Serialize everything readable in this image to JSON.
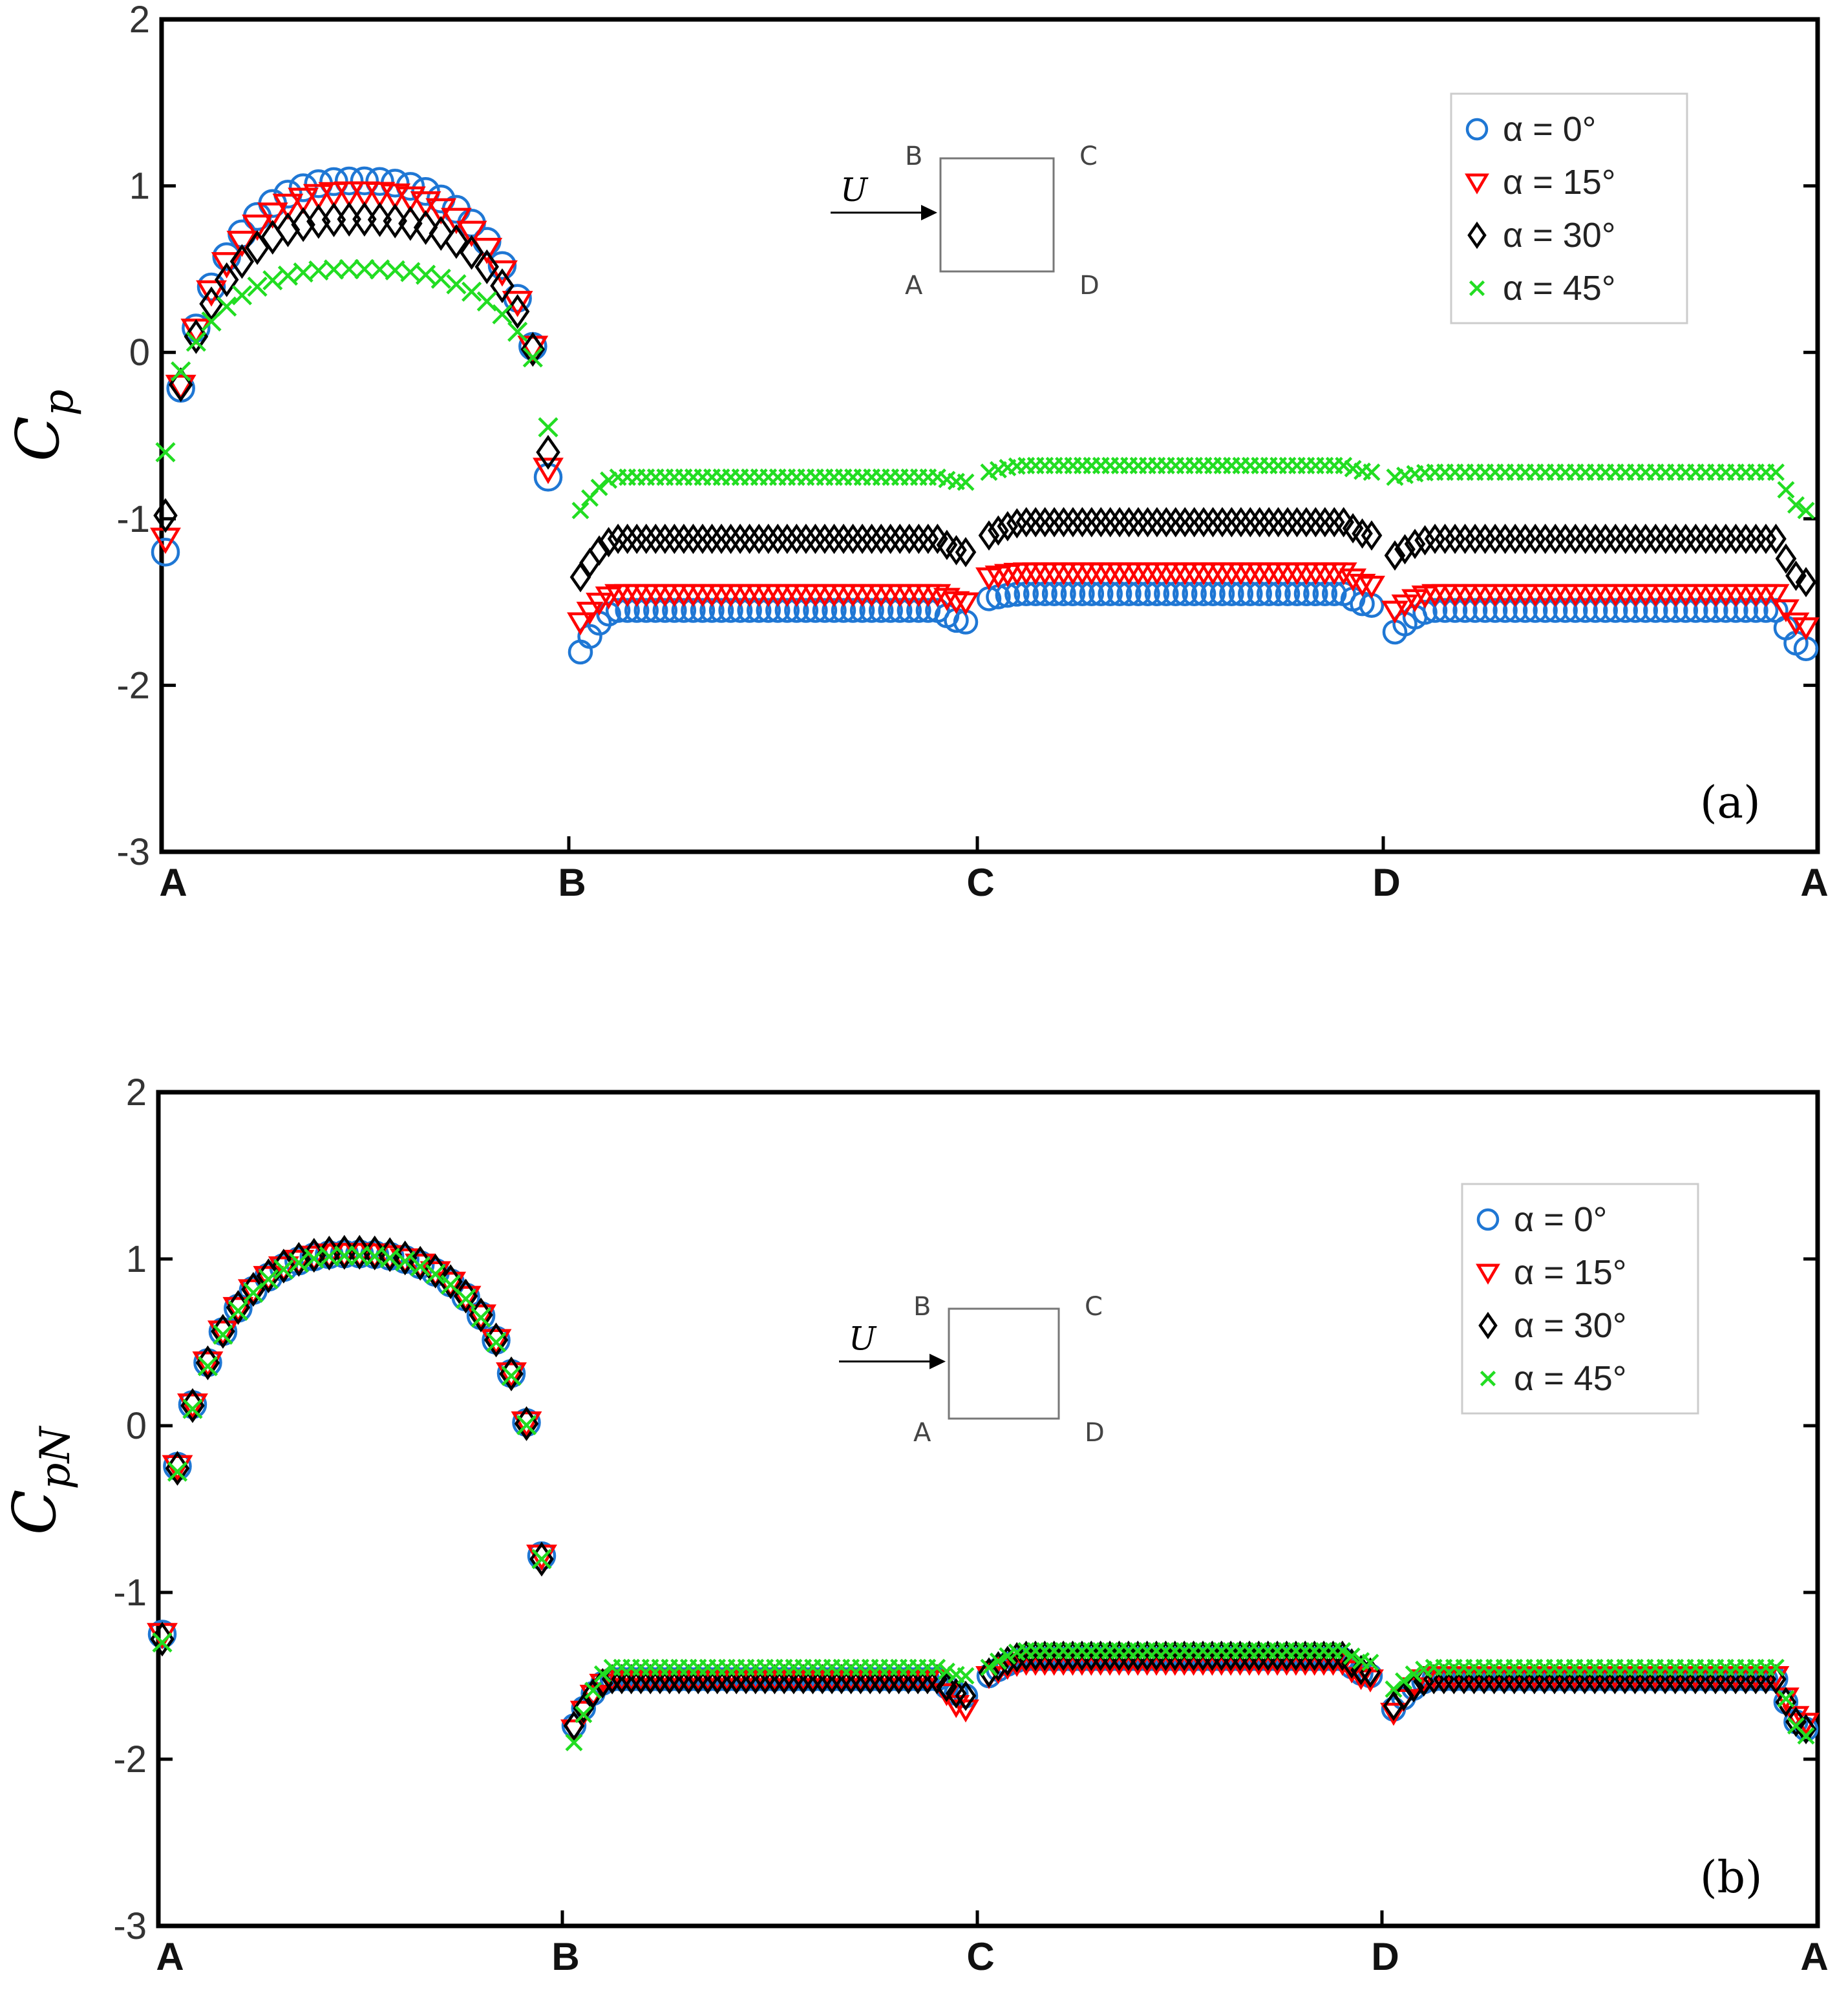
{
  "colors": {
    "alpha0": "#1f77d4",
    "alpha15": "#ff0000",
    "alpha30": "#000000",
    "alpha45": "#22dd22"
  },
  "chart_data": [
    {
      "type": "scatter",
      "panel_tag": "(a)",
      "ylabel_main": "C",
      "ylabel_sub": "p",
      "ylim": [
        -3,
        2
      ],
      "yticks": [
        "2",
        "1",
        "0",
        "-1",
        "-2",
        "-3"
      ],
      "xticks": [
        "A",
        "B",
        "C",
        "D",
        "A"
      ],
      "legend_position": "top-right",
      "inset": {
        "flow_label": "U",
        "corners": [
          "B",
          "C",
          "A",
          "D"
        ]
      },
      "series": [
        {
          "name": "α = 0°",
          "marker": "circle",
          "color": "#1f77d4",
          "faces": [
            {
              "ends": [
                -1.2,
                -0.75
              ],
              "peak": 1.03,
              "shape": "arch"
            },
            {
              "start": -1.8,
              "level": -1.55,
              "end": -1.62,
              "shape": "flat"
            },
            {
              "start": -1.48,
              "level": -1.45,
              "end": -1.52,
              "shape": "flat"
            },
            {
              "start": -1.68,
              "level": -1.55,
              "end": -1.78,
              "shape": "flat"
            }
          ]
        },
        {
          "name": "α = 15°",
          "marker": "triangle-down",
          "color": "#ff0000",
          "faces": [
            {
              "ends": [
                -1.12,
                -0.7
              ],
              "peak": 0.96,
              "shape": "arch"
            },
            {
              "start": -1.62,
              "level": -1.45,
              "end": -1.5,
              "shape": "flat"
            },
            {
              "start": -1.35,
              "level": -1.32,
              "end": -1.4,
              "shape": "flat"
            },
            {
              "start": -1.55,
              "level": -1.45,
              "end": -1.65,
              "shape": "flat"
            }
          ]
        },
        {
          "name": "α = 30°",
          "marker": "diamond",
          "color": "#000000",
          "faces": [
            {
              "ends": [
                -0.98,
                -0.6
              ],
              "peak": 0.8,
              "shape": "arch"
            },
            {
              "start": -1.35,
              "level": -1.12,
              "end": -1.2,
              "shape": "flat"
            },
            {
              "start": -1.1,
              "level": -1.02,
              "end": -1.1,
              "shape": "flat"
            },
            {
              "start": -1.22,
              "level": -1.12,
              "end": -1.38,
              "shape": "flat"
            }
          ]
        },
        {
          "name": "α = 45°",
          "marker": "x",
          "color": "#22dd22",
          "faces": [
            {
              "ends": [
                -0.6,
                -0.45
              ],
              "peak": 0.5,
              "shape": "arch"
            },
            {
              "start": -0.95,
              "level": -0.75,
              "end": -0.78,
              "shape": "flat"
            },
            {
              "start": -0.72,
              "level": -0.68,
              "end": -0.72,
              "shape": "flat"
            },
            {
              "start": -0.75,
              "level": -0.72,
              "end": -0.95,
              "shape": "flat"
            }
          ]
        }
      ]
    },
    {
      "type": "scatter",
      "panel_tag": "(b)",
      "ylabel_main": "C",
      "ylabel_sub": "pN",
      "ylim": [
        -3,
        2
      ],
      "yticks": [
        "2",
        "1",
        "0",
        "-1",
        "-2",
        "-3"
      ],
      "xticks": [
        "A",
        "B",
        "C",
        "D",
        "A"
      ],
      "legend_position": "top-right",
      "inset": {
        "flow_label": "U",
        "corners": [
          "B",
          "C",
          "A",
          "D"
        ]
      },
      "series": [
        {
          "name": "α = 0°",
          "marker": "circle",
          "color": "#1f77d4",
          "faces": [
            {
              "ends": [
                -1.25,
                -0.78
              ],
              "peak": 1.03,
              "shape": "arch"
            },
            {
              "start": -1.8,
              "level": -1.52,
              "end": -1.62,
              "shape": "flat"
            },
            {
              "start": -1.5,
              "level": -1.4,
              "end": -1.5,
              "shape": "flat"
            },
            {
              "start": -1.7,
              "level": -1.52,
              "end": -1.82,
              "shape": "flat"
            }
          ]
        },
        {
          "name": "α = 15°",
          "marker": "triangle-down",
          "color": "#ff0000",
          "faces": [
            {
              "ends": [
                -1.25,
                -0.78
              ],
              "peak": 1.03,
              "shape": "arch"
            },
            {
              "start": -1.82,
              "level": -1.52,
              "end": -1.7,
              "shape": "flat"
            },
            {
              "start": -1.5,
              "level": -1.42,
              "end": -1.52,
              "shape": "flat"
            },
            {
              "start": -1.72,
              "level": -1.5,
              "end": -1.78,
              "shape": "flat"
            }
          ]
        },
        {
          "name": "α = 30°",
          "marker": "diamond",
          "color": "#000000",
          "faces": [
            {
              "ends": [
                -1.28,
                -0.8
              ],
              "peak": 1.04,
              "shape": "arch"
            },
            {
              "start": -1.8,
              "level": -1.52,
              "end": -1.62,
              "shape": "flat"
            },
            {
              "start": -1.48,
              "level": -1.38,
              "end": -1.48,
              "shape": "flat"
            },
            {
              "start": -1.68,
              "level": -1.52,
              "end": -1.82,
              "shape": "flat"
            }
          ]
        },
        {
          "name": "α = 45°",
          "marker": "x",
          "color": "#22dd22",
          "faces": [
            {
              "ends": [
                -1.3,
                -0.8
              ],
              "peak": 1.02,
              "shape": "arch"
            },
            {
              "start": -1.9,
              "level": -1.45,
              "end": -1.5,
              "shape": "flat"
            },
            {
              "start": -1.45,
              "level": -1.35,
              "end": -1.42,
              "shape": "flat"
            },
            {
              "start": -1.58,
              "level": -1.45,
              "end": -1.86,
              "shape": "flat"
            }
          ]
        }
      ]
    }
  ]
}
